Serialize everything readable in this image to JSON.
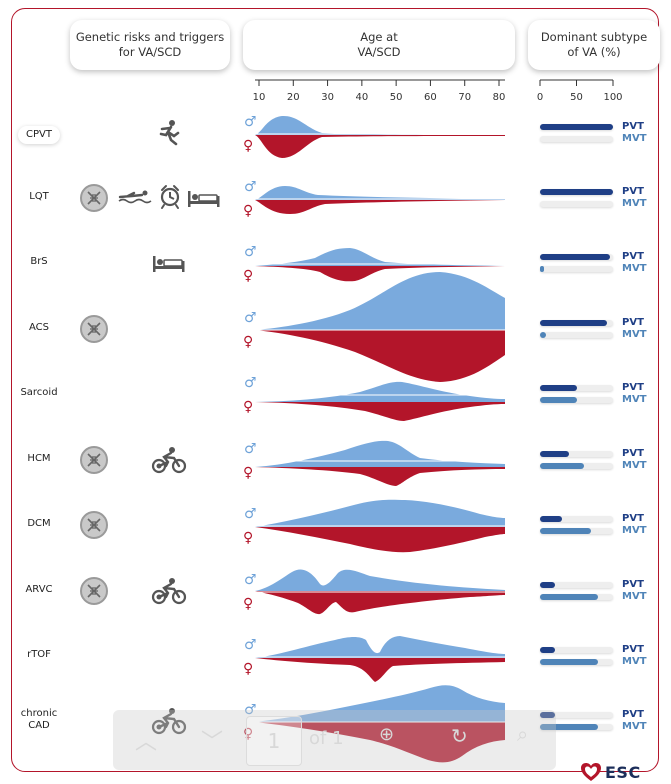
{
  "headers": {
    "genetic": "Genetic risks and triggers\nfor  VA/SCD",
    "age": "Age at\nVA/SCD",
    "subtype": "Dominant subtype\nof VA (%)"
  },
  "age_axis": {
    "ticks": [
      "10",
      "20",
      "30",
      "40",
      "50",
      "60",
      "70",
      "80"
    ]
  },
  "subtype_axis": {
    "ticks": [
      "0",
      "50",
      "100"
    ]
  },
  "symbols": {
    "male": "♂",
    "female": "♀"
  },
  "subtype_labels": {
    "pvt": "PVT",
    "mvt": "MVT"
  },
  "rows": [
    {
      "label": "CPVT",
      "dna": false,
      "triggers": [
        "running-icon"
      ],
      "pvt": 100,
      "mvt": 0
    },
    {
      "label": "LQT",
      "dna": true,
      "triggers": [
        "swimming-icon",
        "alarm-clock-icon",
        "sleeping-icon"
      ],
      "pvt": 100,
      "mvt": 0
    },
    {
      "label": "BrS",
      "dna": false,
      "triggers": [
        "sleeping-icon"
      ],
      "pvt": 96,
      "mvt": 4
    },
    {
      "label": "ACS",
      "dna": true,
      "triggers": [],
      "pvt": 92,
      "mvt": 8
    },
    {
      "label": "Sarcoid",
      "dna": false,
      "triggers": [],
      "pvt": 50,
      "mvt": 50
    },
    {
      "label": "HCM",
      "dna": true,
      "triggers": [
        "cycling-icon"
      ],
      "pvt": 40,
      "mvt": 60
    },
    {
      "label": "DCM",
      "dna": true,
      "triggers": [],
      "pvt": 30,
      "mvt": 70
    },
    {
      "label": "ARVC",
      "dna": true,
      "triggers": [
        "cycling-icon"
      ],
      "pvt": 20,
      "mvt": 80
    },
    {
      "label": "rTOF",
      "dna": false,
      "triggers": [],
      "pvt": 20,
      "mvt": 80
    },
    {
      "label": "chronic\nCAD",
      "dna": false,
      "triggers": [
        "cycling-icon"
      ],
      "pvt": 20,
      "mvt": 80
    }
  ],
  "pdf_viewer": {
    "page": "1",
    "of_text": "of 1"
  },
  "brand": {
    "text": "ESC"
  },
  "colors": {
    "male": "#7aaadd",
    "female": "#b3152a",
    "pvt": "#1f3f86",
    "mvt": "#4f84b8",
    "frame": "#b3152a"
  }
}
